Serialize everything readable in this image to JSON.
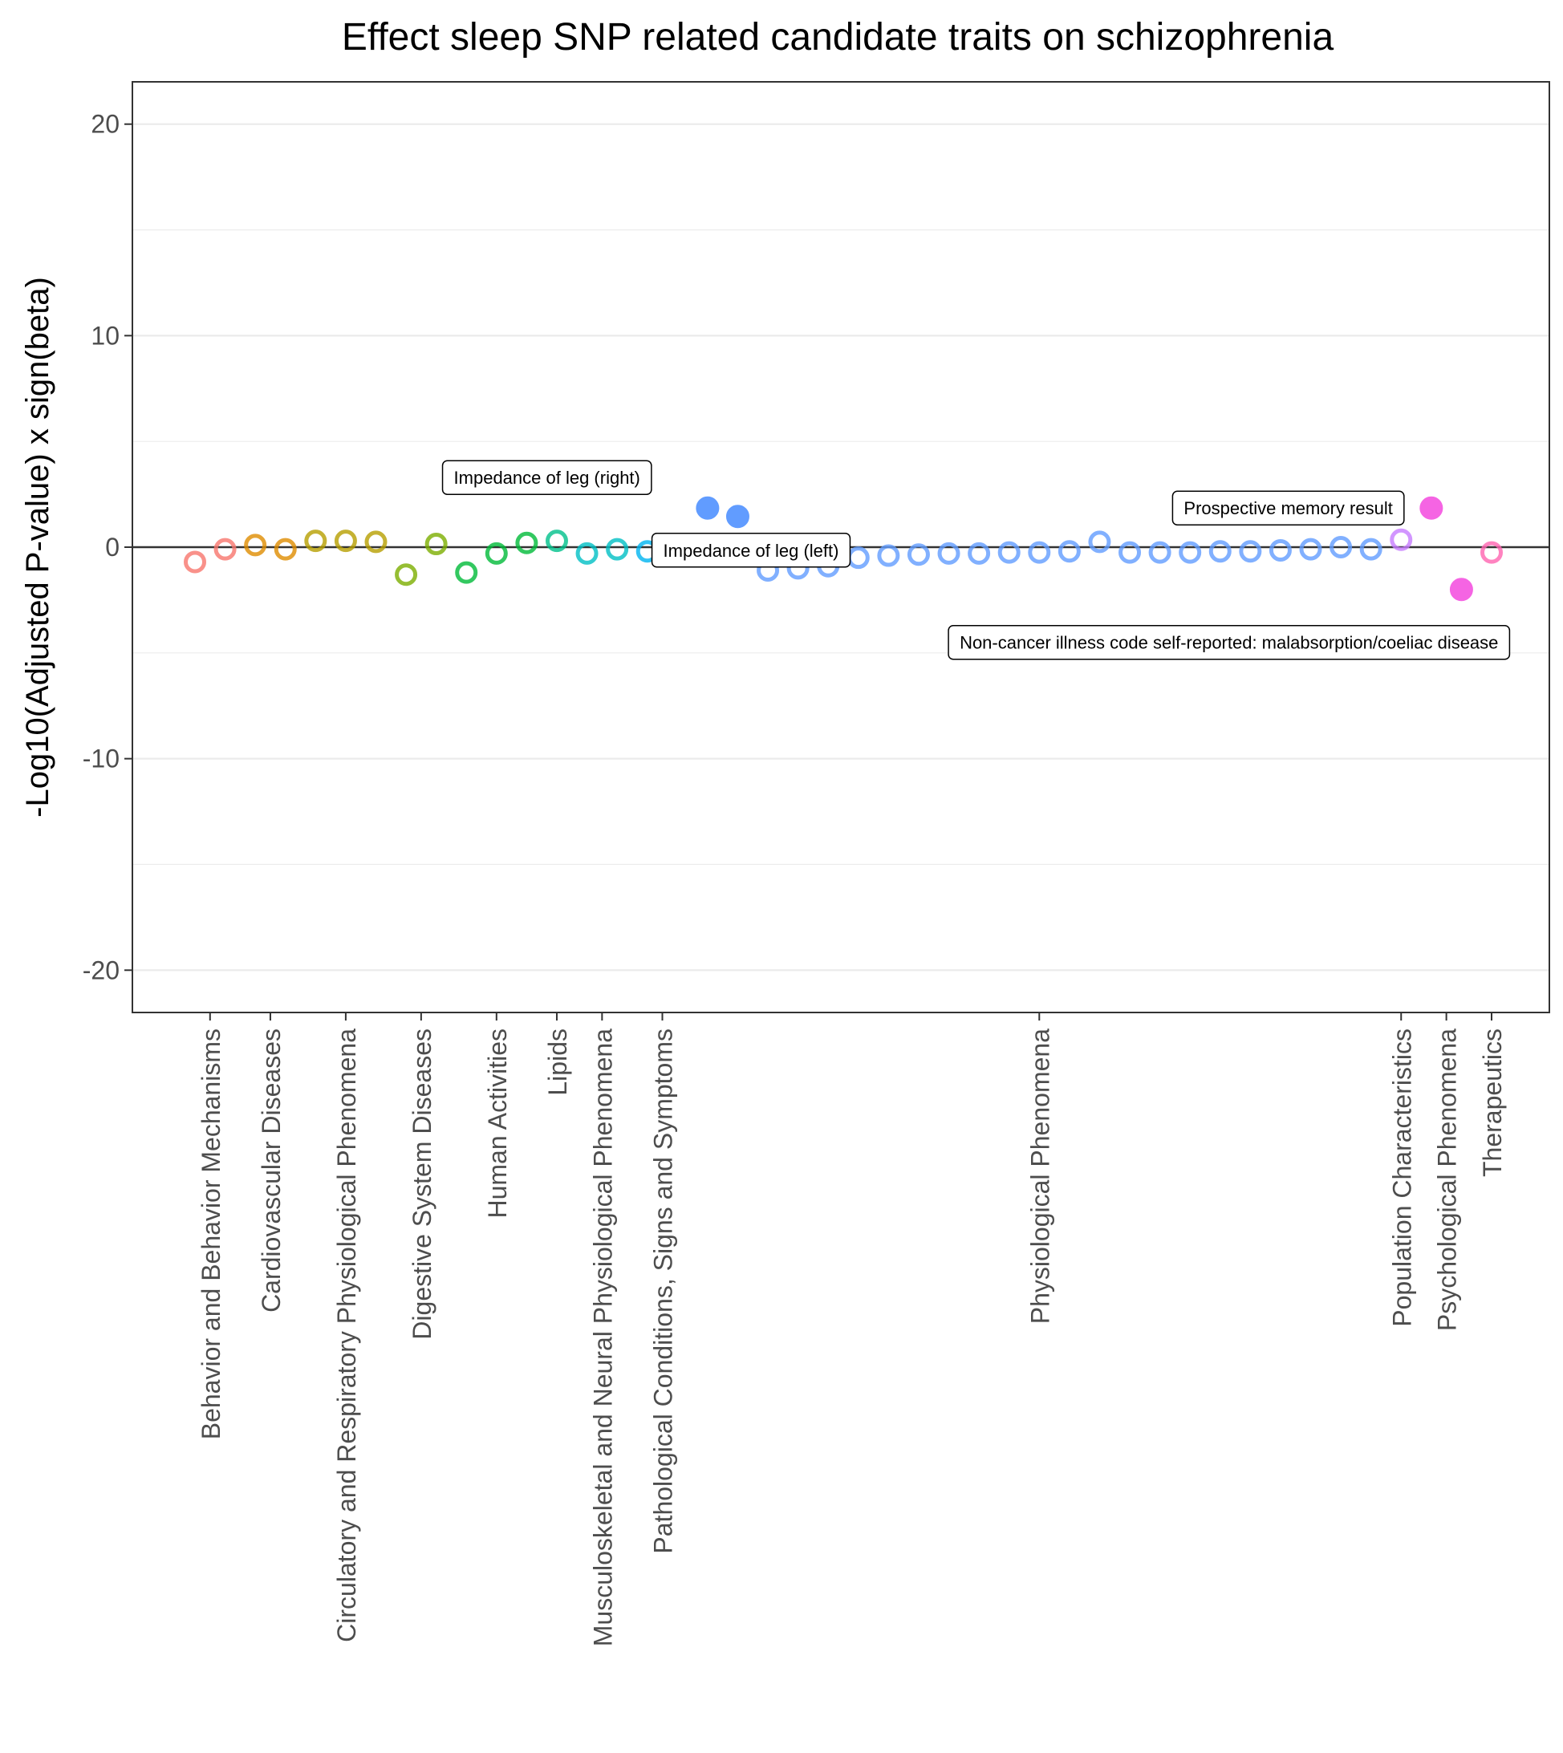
{
  "chart_data": {
    "type": "scatter",
    "title": "Effect sleep SNP related candidate traits on schizophrenia",
    "xlabel": "",
    "ylabel": "-Log10(Adjusted P-value) x sign(beta)",
    "ylim": [
      -22,
      22
    ],
    "y_ticks": [
      20,
      10,
      0,
      -10,
      -20
    ],
    "grid": true,
    "legend": "none",
    "categories": [
      "Behavior and Behavior Mechanisms",
      "Cardiovascular Diseases",
      "Circulatory and Respiratory Physiological Phenomena",
      "Digestive System Diseases",
      "Human Activities",
      "Lipids",
      "Musculoskeletal and Neural Physiological Phenomena",
      "Pathological Conditions, Signs and Symptoms",
      "Physiological Phenomena",
      "Population Characteristics",
      "Psychological Phenomena",
      "Therapeutics"
    ],
    "category_colors": [
      "#F8766D",
      "#DE8C00",
      "#B79F00",
      "#7CAE00",
      "#00BA38",
      "#00C08B",
      "#00BFC4",
      "#00B4F0",
      "#619CFF",
      "#C77CFF",
      "#F564E3",
      "#FF64B0"
    ],
    "points": [
      {
        "cat": 0,
        "y": -0.7,
        "filled": false
      },
      {
        "cat": 0,
        "y": -0.1,
        "filled": false
      },
      {
        "cat": 1,
        "y": 0.1,
        "filled": false
      },
      {
        "cat": 1,
        "y": -0.1,
        "filled": false
      },
      {
        "cat": 2,
        "y": 0.3,
        "filled": false
      },
      {
        "cat": 2,
        "y": 0.3,
        "filled": false
      },
      {
        "cat": 2,
        "y": 0.25,
        "filled": false
      },
      {
        "cat": 3,
        "y": -1.3,
        "filled": false
      },
      {
        "cat": 3,
        "y": 0.15,
        "filled": false
      },
      {
        "cat": 4,
        "y": -1.2,
        "filled": false
      },
      {
        "cat": 4,
        "y": -0.3,
        "filled": false
      },
      {
        "cat": 4,
        "y": 0.2,
        "filled": false
      },
      {
        "cat": 5,
        "y": 0.3,
        "filled": false
      },
      {
        "cat": 6,
        "y": -0.3,
        "filled": false
      },
      {
        "cat": 6,
        "y": -0.1,
        "filled": false
      },
      {
        "cat": 7,
        "y": -0.2,
        "filled": false
      },
      {
        "cat": 7,
        "y": -0.2,
        "filled": false
      },
      {
        "cat": 8,
        "y": 1.85,
        "filled": true
      },
      {
        "cat": 8,
        "y": 1.45,
        "filled": true
      },
      {
        "cat": 8,
        "y": -1.1,
        "filled": false
      },
      {
        "cat": 8,
        "y": -1.0,
        "filled": false
      },
      {
        "cat": 8,
        "y": -0.9,
        "filled": false
      },
      {
        "cat": 8,
        "y": -0.5,
        "filled": false
      },
      {
        "cat": 8,
        "y": -0.4,
        "filled": false
      },
      {
        "cat": 8,
        "y": -0.35,
        "filled": false
      },
      {
        "cat": 8,
        "y": -0.3,
        "filled": false
      },
      {
        "cat": 8,
        "y": -0.3,
        "filled": false
      },
      {
        "cat": 8,
        "y": -0.25,
        "filled": false
      },
      {
        "cat": 8,
        "y": -0.25,
        "filled": false
      },
      {
        "cat": 8,
        "y": -0.2,
        "filled": false
      },
      {
        "cat": 8,
        "y": 0.25,
        "filled": false
      },
      {
        "cat": 8,
        "y": -0.25,
        "filled": false
      },
      {
        "cat": 8,
        "y": -0.25,
        "filled": false
      },
      {
        "cat": 8,
        "y": -0.25,
        "filled": false
      },
      {
        "cat": 8,
        "y": -0.2,
        "filled": false
      },
      {
        "cat": 8,
        "y": -0.2,
        "filled": false
      },
      {
        "cat": 8,
        "y": -0.15,
        "filled": false
      },
      {
        "cat": 8,
        "y": -0.1,
        "filled": false
      },
      {
        "cat": 8,
        "y": 0.0,
        "filled": false
      },
      {
        "cat": 8,
        "y": -0.1,
        "filled": false
      },
      {
        "cat": 9,
        "y": 0.35,
        "filled": false
      },
      {
        "cat": 10,
        "y": 1.85,
        "filled": true
      },
      {
        "cat": 10,
        "y": -2.0,
        "filled": true
      },
      {
        "cat": 11,
        "y": -0.25,
        "filled": false
      }
    ],
    "annotations": [
      {
        "label": "Impedance of leg (right)",
        "point": 17
      },
      {
        "label": "Impedance of leg (left)",
        "point": 18
      },
      {
        "label": "Prospective memory result",
        "point": 41
      },
      {
        "label": "Non-cancer illness code self-reported: malabsorption/coeliac disease",
        "point": 42
      }
    ]
  }
}
